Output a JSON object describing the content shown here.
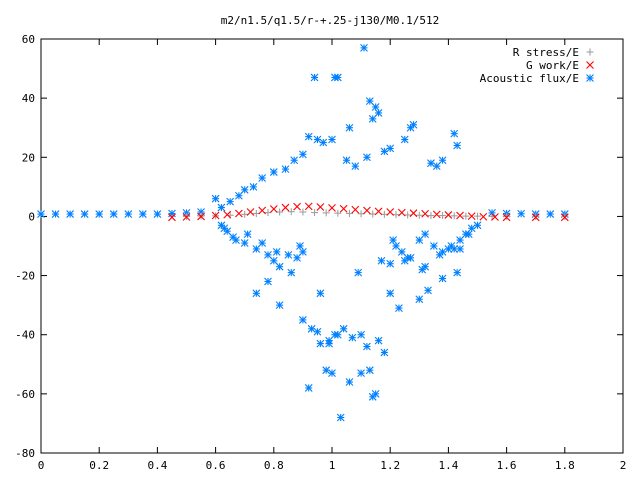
{
  "chart_data": {
    "type": "scatter",
    "title": "m2/n1.5/q1.5/r-+.25-j130/M0.1/512",
    "xlabel": "",
    "ylabel": "",
    "xlim": [
      0,
      2
    ],
    "ylim": [
      -80,
      60
    ],
    "grid": false,
    "legend_position": "top-right",
    "x_ticks": [
      "0",
      "0.2",
      "0.4",
      "0.6",
      "0.8",
      "1",
      "1.2",
      "1.4",
      "1.6",
      "1.8",
      "2"
    ],
    "y_ticks": [
      "60",
      "40",
      "20",
      "0",
      "-20",
      "-40",
      "-60",
      "-80"
    ],
    "series": [
      {
        "name": "R stress/E",
        "marker": "plus",
        "color": "#a0a0a0",
        "x": [
          0.5,
          0.55,
          0.6,
          0.65,
          0.7,
          0.74,
          0.78,
          0.82,
          0.86,
          0.9,
          0.94,
          0.98,
          1.02,
          1.06,
          1.1,
          1.14,
          1.18,
          1.22,
          1.26,
          1.3,
          1.34,
          1.38,
          1.42,
          1.46,
          1.5,
          1.55,
          1.6,
          1.7,
          1.8
        ],
        "y": [
          0.0,
          0.1,
          0.2,
          0.4,
          0.7,
          1.0,
          1.3,
          1.5,
          1.6,
          1.5,
          1.3,
          1.2,
          1.1,
          1.0,
          0.9,
          0.8,
          0.7,
          0.6,
          0.5,
          0.4,
          0.3,
          0.3,
          0.2,
          0.1,
          0.1,
          0.0,
          0.0,
          0.0,
          0.0
        ]
      },
      {
        "name": "G work/E",
        "marker": "cross",
        "color": "#ff0000",
        "x": [
          0.45,
          0.5,
          0.55,
          0.6,
          0.64,
          0.68,
          0.72,
          0.76,
          0.8,
          0.84,
          0.88,
          0.92,
          0.96,
          1.0,
          1.04,
          1.08,
          1.12,
          1.16,
          1.2,
          1.24,
          1.28,
          1.32,
          1.36,
          1.4,
          1.44,
          1.48,
          1.52,
          1.56,
          1.6,
          1.7,
          1.8
        ],
        "y": [
          -0.3,
          -0.2,
          0.0,
          0.3,
          0.6,
          1.0,
          1.5,
          2.0,
          2.5,
          3.0,
          3.3,
          3.4,
          3.2,
          2.9,
          2.6,
          2.3,
          2.0,
          1.7,
          1.5,
          1.3,
          1.1,
          0.9,
          0.7,
          0.5,
          0.3,
          0.1,
          -0.1,
          -0.2,
          -0.3,
          -0.3,
          -0.3
        ]
      },
      {
        "name": "Acoustic flux/E",
        "marker": "star",
        "color": "#0080ff",
        "x": [
          0.0,
          0.05,
          0.1,
          0.15,
          0.2,
          0.25,
          0.3,
          0.35,
          0.4,
          0.45,
          0.5,
          0.55,
          1.55,
          1.6,
          1.65,
          1.7,
          1.75,
          1.8,
          1.11,
          0.94,
          1.01,
          1.02,
          1.13,
          1.15,
          1.16,
          1.14,
          1.06,
          0.92,
          0.95,
          0.97,
          1.0,
          1.28,
          1.27,
          1.25,
          1.42,
          1.43,
          1.38,
          1.36,
          1.34,
          1.2,
          1.18,
          1.12,
          1.05,
          1.08,
          0.9,
          0.87,
          0.84,
          0.8,
          0.76,
          0.73,
          0.7,
          0.68,
          0.65,
          0.62,
          0.6,
          0.62,
          0.64,
          0.66,
          0.7,
          0.74,
          0.78,
          0.8,
          0.82,
          0.86,
          0.88,
          0.9,
          1.22,
          1.24,
          1.26,
          1.3,
          1.32,
          1.35,
          1.38,
          1.4,
          1.44,
          1.46,
          1.48,
          1.5,
          0.74,
          0.82,
          0.78,
          0.9,
          0.93,
          0.96,
          0.99,
          1.04,
          1.07,
          1.1,
          1.12,
          1.16,
          1.2,
          1.23,
          1.3,
          1.33,
          1.38,
          1.43,
          0.92,
          0.98,
          1.0,
          1.03,
          1.06,
          1.1,
          1.14,
          1.18,
          0.95,
          1.02,
          0.99,
          1.15,
          1.13,
          1.01,
          0.96,
          1.2,
          1.25,
          1.32,
          1.41,
          1.44,
          0.63,
          0.67,
          0.71,
          0.76,
          0.81,
          0.85,
          0.89,
          1.09,
          1.17,
          1.21,
          1.27,
          1.31,
          1.37,
          1.42,
          1.47
        ],
        "y": [
          0.8,
          0.8,
          0.8,
          0.8,
          0.8,
          0.8,
          0.8,
          0.8,
          0.8,
          1.0,
          1.2,
          1.5,
          1.2,
          1.0,
          0.9,
          0.8,
          0.8,
          0.8,
          57,
          47,
          47,
          47,
          39,
          37,
          35,
          33,
          30,
          27,
          26,
          25,
          26,
          31,
          30,
          26,
          28,
          24,
          19,
          17,
          18,
          23,
          22,
          20,
          19,
          17,
          21,
          19,
          16,
          15,
          13,
          10,
          9,
          7,
          5,
          3,
          6,
          -3,
          -5,
          -7,
          -9,
          -11,
          -13,
          -15,
          -17,
          -19,
          -14,
          -12,
          -10,
          -12,
          -14,
          -8,
          -6,
          -10,
          -12,
          -11,
          -8,
          -6,
          -4,
          -3,
          -26,
          -30,
          -22,
          -35,
          -38,
          -26,
          -42,
          -38,
          -41,
          -40,
          -44,
          -42,
          -26,
          -31,
          -28,
          -25,
          -21,
          -19,
          -58,
          -52,
          -53,
          -68,
          -56,
          -53,
          -61,
          -46,
          -39,
          -40,
          -43,
          -60,
          -52,
          -40,
          -43,
          -16,
          -15,
          -17,
          -10,
          -11,
          -4,
          -8,
          -6,
          -9,
          -12,
          -13,
          -10,
          -19,
          -15,
          -8,
          -14,
          -18,
          -13,
          -11,
          -6
        ]
      }
    ]
  }
}
